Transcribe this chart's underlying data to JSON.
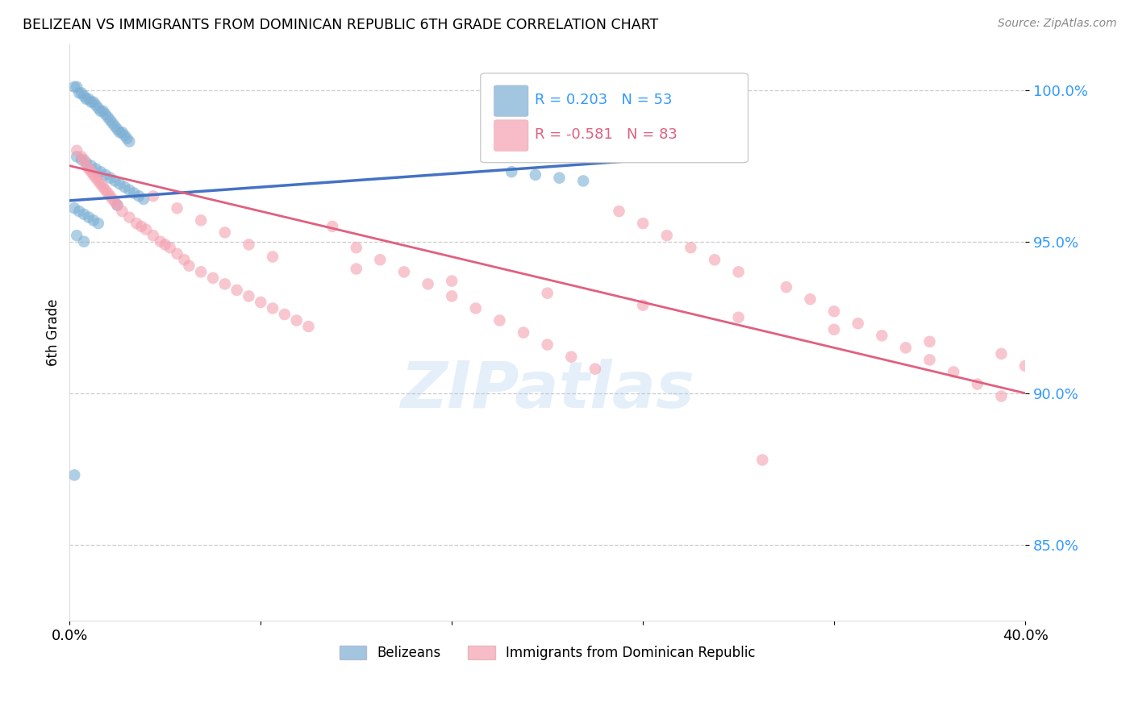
{
  "title": "BELIZEAN VS IMMIGRANTS FROM DOMINICAN REPUBLIC 6TH GRADE CORRELATION CHART",
  "source": "Source: ZipAtlas.com",
  "ylabel": "6th Grade",
  "yticks": [
    0.85,
    0.9,
    0.95,
    1.0
  ],
  "ytick_labels": [
    "85.0%",
    "90.0%",
    "95.0%",
    "100.0%"
  ],
  "xlim": [
    0.0,
    0.4
  ],
  "ylim": [
    0.825,
    1.015
  ],
  "r_blue": 0.203,
  "n_blue": 53,
  "r_pink": -0.581,
  "n_pink": 83,
  "blue_color": "#7BAFD4",
  "pink_color": "#F4A0B0",
  "blue_line_color": "#4472C4",
  "pink_line_color": "#E06080",
  "legend_label_blue": "Belizeans",
  "legend_label_pink": "Immigrants from Dominican Republic",
  "watermark": "ZIPatlas",
  "blue_scatter_x": [
    0.002,
    0.003,
    0.004,
    0.005,
    0.006,
    0.007,
    0.008,
    0.009,
    0.01,
    0.011,
    0.012,
    0.013,
    0.014,
    0.015,
    0.016,
    0.017,
    0.018,
    0.019,
    0.02,
    0.021,
    0.022,
    0.023,
    0.024,
    0.025,
    0.003,
    0.005,
    0.007,
    0.009,
    0.011,
    0.013,
    0.015,
    0.017,
    0.019,
    0.021,
    0.023,
    0.025,
    0.027,
    0.029,
    0.031,
    0.002,
    0.004,
    0.006,
    0.008,
    0.01,
    0.012,
    0.185,
    0.195,
    0.205,
    0.215,
    0.02,
    0.003,
    0.006,
    0.002
  ],
  "blue_scatter_y": [
    1.001,
    1.001,
    0.999,
    0.999,
    0.998,
    0.997,
    0.997,
    0.996,
    0.996,
    0.995,
    0.994,
    0.993,
    0.993,
    0.992,
    0.991,
    0.99,
    0.989,
    0.988,
    0.987,
    0.986,
    0.986,
    0.985,
    0.984,
    0.983,
    0.978,
    0.977,
    0.976,
    0.975,
    0.974,
    0.973,
    0.972,
    0.971,
    0.97,
    0.969,
    0.968,
    0.967,
    0.966,
    0.965,
    0.964,
    0.961,
    0.96,
    0.959,
    0.958,
    0.957,
    0.956,
    0.973,
    0.972,
    0.971,
    0.97,
    0.962,
    0.952,
    0.95,
    0.873
  ],
  "pink_scatter_x": [
    0.003,
    0.005,
    0.006,
    0.007,
    0.008,
    0.009,
    0.01,
    0.011,
    0.012,
    0.013,
    0.014,
    0.015,
    0.016,
    0.017,
    0.018,
    0.019,
    0.02,
    0.022,
    0.025,
    0.028,
    0.03,
    0.032,
    0.035,
    0.038,
    0.04,
    0.042,
    0.045,
    0.048,
    0.05,
    0.055,
    0.06,
    0.065,
    0.07,
    0.075,
    0.08,
    0.085,
    0.09,
    0.095,
    0.1,
    0.11,
    0.12,
    0.13,
    0.14,
    0.15,
    0.16,
    0.17,
    0.18,
    0.19,
    0.2,
    0.21,
    0.22,
    0.23,
    0.24,
    0.25,
    0.26,
    0.27,
    0.28,
    0.29,
    0.3,
    0.31,
    0.32,
    0.33,
    0.34,
    0.35,
    0.36,
    0.37,
    0.38,
    0.39,
    0.035,
    0.045,
    0.055,
    0.065,
    0.075,
    0.085,
    0.12,
    0.16,
    0.2,
    0.24,
    0.28,
    0.32,
    0.36,
    0.39,
    0.4
  ],
  "pink_scatter_y": [
    0.98,
    0.978,
    0.977,
    0.975,
    0.974,
    0.973,
    0.972,
    0.971,
    0.97,
    0.969,
    0.968,
    0.967,
    0.966,
    0.965,
    0.964,
    0.963,
    0.962,
    0.96,
    0.958,
    0.956,
    0.955,
    0.954,
    0.952,
    0.95,
    0.949,
    0.948,
    0.946,
    0.944,
    0.942,
    0.94,
    0.938,
    0.936,
    0.934,
    0.932,
    0.93,
    0.928,
    0.926,
    0.924,
    0.922,
    0.955,
    0.948,
    0.944,
    0.94,
    0.936,
    0.932,
    0.928,
    0.924,
    0.92,
    0.916,
    0.912,
    0.908,
    0.96,
    0.956,
    0.952,
    0.948,
    0.944,
    0.94,
    0.878,
    0.935,
    0.931,
    0.927,
    0.923,
    0.919,
    0.915,
    0.911,
    0.907,
    0.903,
    0.899,
    0.965,
    0.961,
    0.957,
    0.953,
    0.949,
    0.945,
    0.941,
    0.937,
    0.933,
    0.929,
    0.925,
    0.921,
    0.917,
    0.913,
    0.909
  ],
  "blue_line_x": [
    0.0,
    0.26
  ],
  "blue_line_y": [
    0.9635,
    0.978
  ],
  "pink_line_x": [
    0.0,
    0.4
  ],
  "pink_line_y": [
    0.975,
    0.9
  ]
}
